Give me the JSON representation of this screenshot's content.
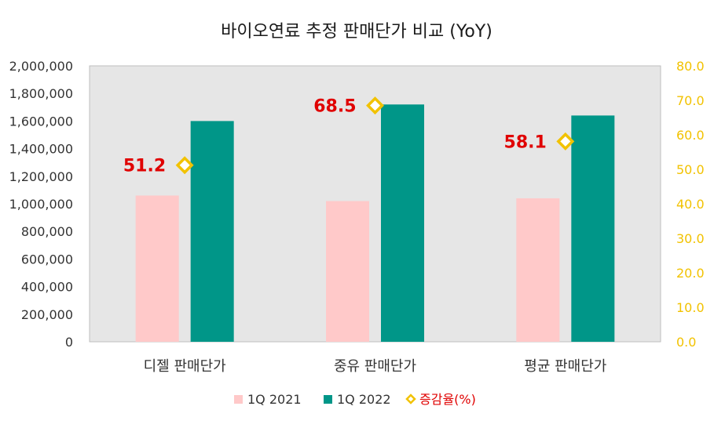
{
  "chart_data": {
    "type": "bar",
    "title": "바이오연료 추정 판매단가 비교 (YoY)",
    "categories": [
      "디젤 판매단가",
      "중유 판매단가",
      "평균 판매단가"
    ],
    "series": [
      {
        "name": "1Q 2021",
        "values": [
          1060000,
          1020000,
          1040000
        ],
        "color": "#ffc9c9",
        "axis": "left"
      },
      {
        "name": "1Q 2022",
        "values": [
          1600000,
          1720000,
          1640000
        ],
        "color": "#009688",
        "axis": "left"
      }
    ],
    "line_series": {
      "name": "증감율(%)",
      "values": [
        51.2,
        68.5,
        58.1
      ],
      "labels": [
        "51.2",
        "68.5",
        "58.1"
      ],
      "color": "#f2c200",
      "label_color": "#e00000",
      "axis": "right"
    },
    "y_left": {
      "min": 0,
      "max": 2000000,
      "step": 200000,
      "tick_labels": [
        "0",
        "200,000",
        "400,000",
        "600,000",
        "800,000",
        "1,000,000",
        "1,200,000",
        "1,400,000",
        "1,600,000",
        "1,800,000",
        "2,000,000"
      ]
    },
    "y_right": {
      "min": 0,
      "max": 80,
      "step": 10,
      "tick_labels": [
        "0.0",
        "10.0",
        "20.0",
        "30.0",
        "40.0",
        "50.0",
        "60.0",
        "70.0",
        "80.0"
      ]
    },
    "plot_background": "#e6e6e6",
    "legend_position": "bottom"
  }
}
